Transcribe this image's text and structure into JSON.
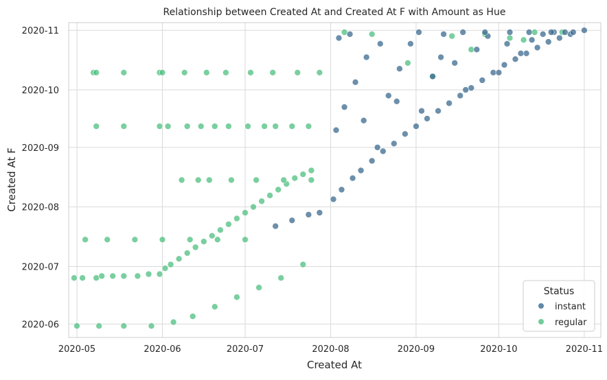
{
  "chart_data": {
    "type": "scatter",
    "title": "Relationship between Created At and Created At F with Amount as Hue",
    "xlabel": "Created At",
    "ylabel": "Created At F",
    "x_ticks": [
      "2020-05",
      "2020-06",
      "2020-07",
      "2020-08",
      "2020-09",
      "2020-10",
      "2020-11"
    ],
    "y_ticks": [
      "2020-06",
      "2020-07",
      "2020-08",
      "2020-09",
      "2020-10",
      "2020-11"
    ],
    "xlim": [
      "2020-04-28",
      "2020-11-07"
    ],
    "ylim": [
      "2020-05-25",
      "2020-11-05"
    ],
    "grid": true,
    "legend": {
      "title": "Status",
      "placement": "bottom-right",
      "entries": [
        {
          "label": "instant",
          "color": "#3b6a8f"
        },
        {
          "label": "regular",
          "color": "#4dbf7f"
        }
      ]
    },
    "series": [
      {
        "name": "instant",
        "color": "#3b6a8f",
        "x": [
          "2020-07-28",
          "2020-08-02",
          "2020-08-05",
          "2020-08-09",
          "2020-08-12",
          "2020-08-16",
          "2020-08-20",
          "2020-08-24",
          "2020-08-28",
          "2020-09-01",
          "2020-09-05",
          "2020-09-09",
          "2020-09-13",
          "2020-09-17",
          "2020-09-21",
          "2020-09-25",
          "2020-09-29",
          "2020-10-03",
          "2020-10-07",
          "2020-10-11",
          "2020-10-15",
          "2020-10-19",
          "2020-10-23",
          "2020-10-27",
          "2020-11-01",
          "2020-08-03",
          "2020-08-06",
          "2020-08-10",
          "2020-08-14",
          "2020-08-18",
          "2020-08-22",
          "2020-08-26",
          "2020-08-30",
          "2020-09-03",
          "2020-09-07",
          "2020-09-11",
          "2020-09-15",
          "2020-09-19",
          "2020-09-23",
          "2020-09-27",
          "2020-10-01",
          "2020-10-05",
          "2020-10-09",
          "2020-10-13",
          "2020-10-17",
          "2020-10-21",
          "2020-10-25",
          "2020-08-04",
          "2020-08-08",
          "2020-08-13",
          "2020-08-19",
          "2020-08-25",
          "2020-09-02",
          "2020-09-10",
          "2020-09-18",
          "2020-09-26",
          "2020-10-04",
          "2020-10-12",
          "2020-10-20",
          "2020-10-28",
          "2020-07-12",
          "2020-07-18",
          "2020-07-24"
        ],
        "y": [
          "2020-07-29",
          "2020-08-05",
          "2020-08-10",
          "2020-08-16",
          "2020-08-20",
          "2020-08-25",
          "2020-08-30",
          "2020-09-03",
          "2020-09-08",
          "2020-09-12",
          "2020-09-16",
          "2020-09-20",
          "2020-09-24",
          "2020-09-28",
          "2020-10-02",
          "2020-10-06",
          "2020-10-10",
          "2020-10-14",
          "2020-10-17",
          "2020-10-20",
          "2020-10-23",
          "2020-10-26",
          "2020-10-28",
          "2020-10-30",
          "2020-11-01",
          "2020-09-10",
          "2020-09-22",
          "2020-10-05",
          "2020-10-18",
          "2020-09-01",
          "2020-09-28",
          "2020-10-12",
          "2020-10-25",
          "2020-09-20",
          "2020-10-08",
          "2020-10-30",
          "2020-10-15",
          "2020-10-01",
          "2020-10-22",
          "2020-10-29",
          "2020-10-10",
          "2020-10-31",
          "2020-10-20",
          "2020-10-27",
          "2020-10-30",
          "2020-10-31",
          "2020-10-31",
          "2020-10-28",
          "2020-10-30",
          "2020-09-15",
          "2020-10-25",
          "2020-09-25",
          "2020-10-31",
          "2020-10-18",
          "2020-10-31",
          "2020-10-31",
          "2020-10-25",
          "2020-10-31",
          "2020-10-31",
          "2020-10-31",
          "2020-07-22",
          "2020-07-25",
          "2020-07-28"
        ]
      },
      {
        "name": "regular",
        "color": "#4dbf7f",
        "x": [
          "2020-04-30",
          "2020-05-03",
          "2020-05-08",
          "2020-05-10",
          "2020-05-14",
          "2020-05-18",
          "2020-05-23",
          "2020-05-27",
          "2020-05-31",
          "2020-06-02",
          "2020-06-04",
          "2020-06-07",
          "2020-06-10",
          "2020-06-13",
          "2020-06-16",
          "2020-06-19",
          "2020-06-22",
          "2020-06-25",
          "2020-06-28",
          "2020-07-01",
          "2020-07-04",
          "2020-07-07",
          "2020-07-10",
          "2020-07-13",
          "2020-07-16",
          "2020-07-19",
          "2020-07-22",
          "2020-07-25",
          "2020-05-01",
          "2020-05-09",
          "2020-05-18",
          "2020-05-28",
          "2020-06-05",
          "2020-06-12",
          "2020-06-20",
          "2020-06-28",
          "2020-07-06",
          "2020-07-14",
          "2020-07-22",
          "2020-05-07",
          "2020-05-08",
          "2020-05-18",
          "2020-05-31",
          "2020-05-08",
          "2020-05-18",
          "2020-05-31",
          "2020-06-03",
          "2020-06-10",
          "2020-06-15",
          "2020-06-20",
          "2020-06-25",
          "2020-07-02",
          "2020-07-08",
          "2020-07-12",
          "2020-07-18",
          "2020-07-24",
          "2020-06-08",
          "2020-06-14",
          "2020-06-18",
          "2020-06-26",
          "2020-07-05",
          "2020-07-15",
          "2020-07-25",
          "2020-06-01",
          "2020-06-09",
          "2020-06-17",
          "2020-06-24",
          "2020-07-03",
          "2020-07-11",
          "2020-07-20",
          "2020-07-28",
          "2020-05-04",
          "2020-05-12",
          "2020-05-22",
          "2020-06-01",
          "2020-06-11",
          "2020-06-21",
          "2020-07-01",
          "2020-08-16",
          "2020-08-29",
          "2020-09-07",
          "2020-09-21",
          "2020-10-05",
          "2020-10-14",
          "2020-10-24",
          "2020-09-14",
          "2020-10-10",
          "2020-08-06",
          "2020-09-26"
        ],
        "y": [
          "2020-06-25",
          "2020-06-25",
          "2020-06-25",
          "2020-06-26",
          "2020-06-26",
          "2020-06-26",
          "2020-06-26",
          "2020-06-27",
          "2020-06-27",
          "2020-06-30",
          "2020-07-02",
          "2020-07-05",
          "2020-07-08",
          "2020-07-11",
          "2020-07-14",
          "2020-07-17",
          "2020-07-20",
          "2020-07-23",
          "2020-07-26",
          "2020-07-29",
          "2020-08-01",
          "2020-08-04",
          "2020-08-07",
          "2020-08-10",
          "2020-08-13",
          "2020-08-16",
          "2020-08-18",
          "2020-08-20",
          "2020-05-31",
          "2020-05-31",
          "2020-05-31",
          "2020-05-31",
          "2020-06-02",
          "2020-06-05",
          "2020-06-10",
          "2020-06-15",
          "2020-06-20",
          "2020-06-25",
          "2020-07-02",
          "2020-10-10",
          "2020-10-10",
          "2020-10-10",
          "2020-10-10",
          "2020-09-12",
          "2020-09-12",
          "2020-09-12",
          "2020-09-12",
          "2020-09-12",
          "2020-09-12",
          "2020-09-12",
          "2020-09-12",
          "2020-09-12",
          "2020-09-12",
          "2020-09-12",
          "2020-09-12",
          "2020-09-12",
          "2020-08-15",
          "2020-08-15",
          "2020-08-15",
          "2020-08-15",
          "2020-08-15",
          "2020-08-15",
          "2020-08-15",
          "2020-10-10",
          "2020-10-10",
          "2020-10-10",
          "2020-10-10",
          "2020-10-10",
          "2020-10-10",
          "2020-10-10",
          "2020-10-10",
          "2020-07-15",
          "2020-07-15",
          "2020-07-15",
          "2020-07-15",
          "2020-07-15",
          "2020-07-15",
          "2020-07-15",
          "2020-10-30",
          "2020-10-15",
          "2020-10-08",
          "2020-10-22",
          "2020-10-28",
          "2020-10-31",
          "2020-10-31",
          "2020-10-29",
          "2020-10-27",
          "2020-10-31",
          "2020-10-30"
        ]
      }
    ]
  }
}
